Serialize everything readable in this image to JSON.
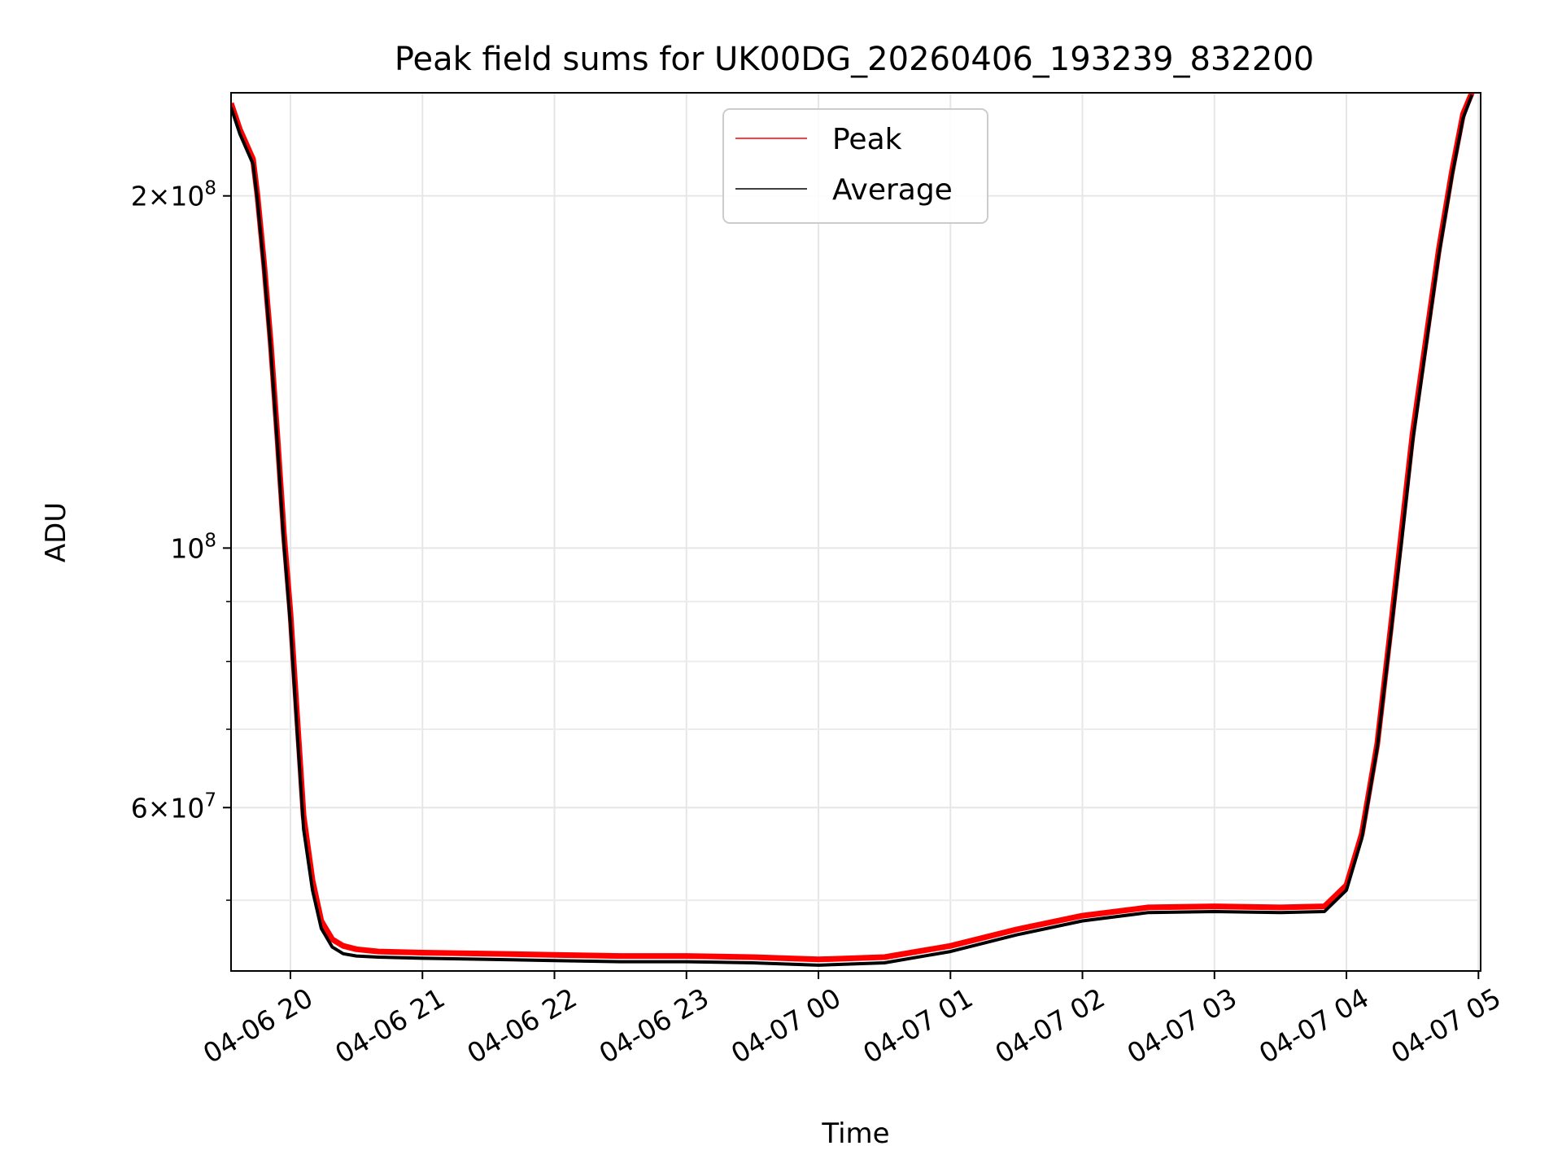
{
  "chart_data": {
    "type": "line",
    "title": "Peak field sums for UK00DG_20260406_193239_832200",
    "xlabel": "Time",
    "ylabel": "ADU",
    "x_scale": "time",
    "y_scale": "log",
    "xlim": [
      "2026-04-06 19:33",
      "2026-04-07 05:01"
    ],
    "ylim": [
      43500000,
      245000000
    ],
    "grid": true,
    "legend_position": "upper center",
    "x_ticks": [
      "04-06 20",
      "04-06 21",
      "04-06 22",
      "04-06 23",
      "04-07 00",
      "04-07 01",
      "04-07 02",
      "04-07 03",
      "04-07 04",
      "04-07 05"
    ],
    "y_tick_labels": [
      {
        "value": 200000000,
        "mantissa": "2",
        "base": "10",
        "exp": "8"
      },
      {
        "value": 100000000,
        "mantissa": "",
        "base": "10",
        "exp": "8"
      },
      {
        "value": 60000000,
        "mantissa": "6",
        "base": "10",
        "exp": "7"
      }
    ],
    "y_minor_ticks": [
      50000000,
      70000000,
      80000000,
      90000000
    ],
    "series": [
      {
        "name": "Peak",
        "color": "#ff0000",
        "x": [
          "2026-04-06 19:33",
          "2026-04-06 19:37",
          "2026-04-06 19:43",
          "2026-04-06 19:45",
          "2026-04-06 19:48",
          "2026-04-06 19:51",
          "2026-04-06 19:54",
          "2026-04-06 19:57",
          "2026-04-06 20:00",
          "2026-04-06 20:03",
          "2026-04-06 20:06",
          "2026-04-06 20:10",
          "2026-04-06 20:14",
          "2026-04-06 20:19",
          "2026-04-06 20:24",
          "2026-04-06 20:30",
          "2026-04-06 20:40",
          "2026-04-06 21:00",
          "2026-04-06 21:30",
          "2026-04-06 22:00",
          "2026-04-06 22:30",
          "2026-04-06 23:00",
          "2026-04-06 23:30",
          "2026-04-07 00:00",
          "2026-04-07 00:30",
          "2026-04-07 01:00",
          "2026-04-07 01:30",
          "2026-04-07 02:00",
          "2026-04-07 02:30",
          "2026-04-07 03:00",
          "2026-04-07 03:30",
          "2026-04-07 03:50",
          "2026-04-07 04:00",
          "2026-04-07 04:07",
          "2026-04-07 04:14",
          "2026-04-07 04:20",
          "2026-04-07 04:25",
          "2026-04-07 04:30",
          "2026-04-07 04:36",
          "2026-04-07 04:42",
          "2026-04-07 04:48",
          "2026-04-07 04:53",
          "2026-04-07 04:57"
        ],
        "y": [
          240000000,
          228000000,
          215000000,
          200000000,
          175000000,
          150000000,
          125000000,
          103000000,
          88000000,
          72000000,
          59000000,
          52000000,
          48000000,
          46300000,
          45700000,
          45400000,
          45200000,
          45100000,
          45000000,
          44900000,
          44800000,
          44800000,
          44700000,
          44500000,
          44700000,
          45700000,
          47200000,
          48500000,
          49300000,
          49400000,
          49300000,
          49400000,
          51500000,
          57000000,
          68000000,
          85000000,
          103000000,
          125000000,
          150000000,
          180000000,
          210000000,
          235000000,
          245000000
        ]
      },
      {
        "name": "Average",
        "color": "#000000",
        "x": [
          "2026-04-06 19:33",
          "2026-04-06 19:37",
          "2026-04-06 19:43",
          "2026-04-06 19:45",
          "2026-04-06 19:48",
          "2026-04-06 19:51",
          "2026-04-06 19:54",
          "2026-04-06 19:57",
          "2026-04-06 20:00",
          "2026-04-06 20:03",
          "2026-04-06 20:06",
          "2026-04-06 20:10",
          "2026-04-06 20:14",
          "2026-04-06 20:19",
          "2026-04-06 20:24",
          "2026-04-06 20:30",
          "2026-04-06 20:40",
          "2026-04-06 21:00",
          "2026-04-06 21:30",
          "2026-04-06 22:00",
          "2026-04-06 22:30",
          "2026-04-06 23:00",
          "2026-04-06 23:30",
          "2026-04-07 00:00",
          "2026-04-07 00:30",
          "2026-04-07 01:00",
          "2026-04-07 01:30",
          "2026-04-07 02:00",
          "2026-04-07 02:30",
          "2026-04-07 03:00",
          "2026-04-07 03:30",
          "2026-04-07 03:50",
          "2026-04-07 04:00",
          "2026-04-07 04:07",
          "2026-04-07 04:14",
          "2026-04-07 04:20",
          "2026-04-07 04:25",
          "2026-04-07 04:30",
          "2026-04-07 04:36",
          "2026-04-07 04:42",
          "2026-04-07 04:48",
          "2026-04-07 04:53",
          "2026-04-07 04:57"
        ],
        "y": [
          238000000,
          226000000,
          213000000,
          198000000,
          173000000,
          148000000,
          123000000,
          101000000,
          86000000,
          70000000,
          57500000,
          51000000,
          47300000,
          45600000,
          45000000,
          44800000,
          44700000,
          44600000,
          44500000,
          44400000,
          44300000,
          44300000,
          44200000,
          44000000,
          44200000,
          45200000,
          46700000,
          48000000,
          48800000,
          48900000,
          48800000,
          48900000,
          51000000,
          56500000,
          67500000,
          84000000,
          101000000,
          123000000,
          148000000,
          178000000,
          208000000,
          233000000,
          244000000
        ]
      }
    ]
  }
}
